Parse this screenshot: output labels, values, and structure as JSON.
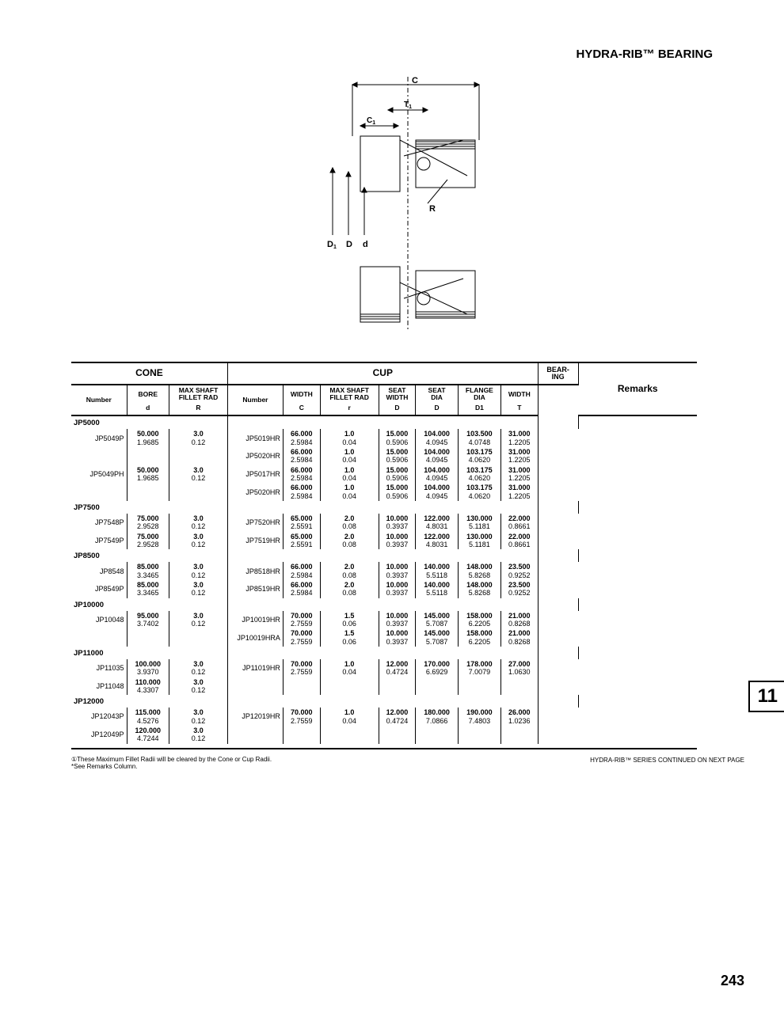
{
  "header": "HYDRA-RIB™ BEARING",
  "diagram_labels": {
    "C": "C",
    "T1": "T1",
    "C1": "C1",
    "R": "R",
    "D1": "D1",
    "D": "D",
    "d": "d"
  },
  "table": {
    "main_headers": {
      "cone": "CONE",
      "cup": "CUP",
      "bearing": "BEAR-\nING",
      "remarks": "Remarks"
    },
    "sub_headers": {
      "cone_number": "Number",
      "bore": "BORE",
      "bore_sym": "d",
      "max_fillet_cone": "MAX SHAFT\nFILLET RAD",
      "max_fillet_cone_sym": "R",
      "cup_number": "Number",
      "width": "WIDTH",
      "width_sym": "C",
      "max_fillet_cup": "MAX SHAFT\nFILLET RAD",
      "max_fillet_cup_sym": "r",
      "seat_width": "SEAT\nWIDTH",
      "seat_width_sym": "D",
      "seat_dia": "SEAT\nDIA",
      "seat_dia_sym": "D",
      "flange_dia": "FLANGE\nDIA",
      "flange_dia_sym": "D1",
      "bwidth": "WIDTH",
      "bwidth_sym": "T"
    },
    "groups": [
      {
        "name": "JP5000",
        "rows": [
          {
            "cone": "JP5049P",
            "bore": [
              "50.000",
              "1.9685"
            ],
            "mfr": [
              "3.0",
              "0.12"
            ],
            "cup": "JP5019HR",
            "w": [
              "66.000",
              "2.5984"
            ],
            "mfr2": [
              "1.0",
              "0.04"
            ],
            "sw": [
              "15.000",
              "0.5906"
            ],
            "sd": [
              "104.000",
              "4.0945"
            ],
            "fd": [
              "103.500",
              "4.0748"
            ],
            "bw": [
              "31.000",
              "1.2205"
            ]
          },
          {
            "cone": "",
            "bore": [
              "",
              ""
            ],
            "mfr": [
              "",
              ""
            ],
            "cup": "JP5020HR",
            "w": [
              "66.000",
              "2.5984"
            ],
            "mfr2": [
              "1.0",
              "0.04"
            ],
            "sw": [
              "15.000",
              "0.5906"
            ],
            "sd": [
              "104.000",
              "4.0945"
            ],
            "fd": [
              "103.175",
              "4.0620"
            ],
            "bw": [
              "31.000",
              "1.2205"
            ]
          },
          {
            "cone": "JP5049PH",
            "bore": [
              "50.000",
              "1.9685"
            ],
            "mfr": [
              "3.0",
              "0.12"
            ],
            "cup": "JP5017HR",
            "w": [
              "66.000",
              "2.5984"
            ],
            "mfr2": [
              "1.0",
              "0.04"
            ],
            "sw": [
              "15.000",
              "0.5906"
            ],
            "sd": [
              "104.000",
              "4.0945"
            ],
            "fd": [
              "103.175",
              "4.0620"
            ],
            "bw": [
              "31.000",
              "1.2205"
            ]
          },
          {
            "cone": "",
            "bore": [
              "",
              ""
            ],
            "mfr": [
              "",
              ""
            ],
            "cup": "JP5020HR",
            "w": [
              "66.000",
              "2.5984"
            ],
            "mfr2": [
              "1.0",
              "0.04"
            ],
            "sw": [
              "15.000",
              "0.5906"
            ],
            "sd": [
              "104.000",
              "4.0945"
            ],
            "fd": [
              "103.175",
              "4.0620"
            ],
            "bw": [
              "31.000",
              "1.2205"
            ]
          }
        ]
      },
      {
        "name": "JP7500",
        "rows": [
          {
            "cone": "JP7548P",
            "bore": [
              "75.000",
              "2.9528"
            ],
            "mfr": [
              "3.0",
              "0.12"
            ],
            "cup": "JP7520HR",
            "w": [
              "65.000",
              "2.5591"
            ],
            "mfr2": [
              "2.0",
              "0.08"
            ],
            "sw": [
              "10.000",
              "0.3937"
            ],
            "sd": [
              "122.000",
              "4.8031"
            ],
            "fd": [
              "130.000",
              "5.1181"
            ],
            "bw": [
              "22.000",
              "0.8661"
            ]
          },
          {
            "cone": "JP7549P",
            "bore": [
              "75.000",
              "2.9528"
            ],
            "mfr": [
              "3.0",
              "0.12"
            ],
            "cup": "JP7519HR",
            "w": [
              "65.000",
              "2.5591"
            ],
            "mfr2": [
              "2.0",
              "0.08"
            ],
            "sw": [
              "10.000",
              "0.3937"
            ],
            "sd": [
              "122.000",
              "4.8031"
            ],
            "fd": [
              "130.000",
              "5.1181"
            ],
            "bw": [
              "22.000",
              "0.8661"
            ]
          }
        ]
      },
      {
        "name": "JP8500",
        "rows": [
          {
            "cone": "JP8548",
            "bore": [
              "85.000",
              "3.3465"
            ],
            "mfr": [
              "3.0",
              "0.12"
            ],
            "cup": "JP8518HR",
            "w": [
              "66.000",
              "2.5984"
            ],
            "mfr2": [
              "2.0",
              "0.08"
            ],
            "sw": [
              "10.000",
              "0.3937"
            ],
            "sd": [
              "140.000",
              "5.5118"
            ],
            "fd": [
              "148.000",
              "5.8268"
            ],
            "bw": [
              "23.500",
              "0.9252"
            ]
          },
          {
            "cone": "JP8549P",
            "bore": [
              "85.000",
              "3.3465"
            ],
            "mfr": [
              "3.0",
              "0.12"
            ],
            "cup": "JP8519HR",
            "w": [
              "66.000",
              "2.5984"
            ],
            "mfr2": [
              "2.0",
              "0.08"
            ],
            "sw": [
              "10.000",
              "0.3937"
            ],
            "sd": [
              "140.000",
              "5.5118"
            ],
            "fd": [
              "148.000",
              "5.8268"
            ],
            "bw": [
              "23.500",
              "0.9252"
            ]
          }
        ]
      },
      {
        "name": "JP10000",
        "rows": [
          {
            "cone": "JP10048",
            "bore": [
              "95.000",
              "3.7402"
            ],
            "mfr": [
              "3.0",
              "0.12"
            ],
            "cup": "JP10019HR",
            "w": [
              "70.000",
              "2.7559"
            ],
            "mfr2": [
              "1.5",
              "0.06"
            ],
            "sw": [
              "10.000",
              "0.3937"
            ],
            "sd": [
              "145.000",
              "5.7087"
            ],
            "fd": [
              "158.000",
              "6.2205"
            ],
            "bw": [
              "21.000",
              "0.8268"
            ]
          },
          {
            "cone": "",
            "bore": [
              "",
              ""
            ],
            "mfr": [
              "",
              ""
            ],
            "cup": "JP10019HRA",
            "w": [
              "70.000",
              "2.7559"
            ],
            "mfr2": [
              "1.5",
              "0.06"
            ],
            "sw": [
              "10.000",
              "0.3937"
            ],
            "sd": [
              "145.000",
              "5.7087"
            ],
            "fd": [
              "158.000",
              "6.2205"
            ],
            "bw": [
              "21.000",
              "0.8268"
            ]
          }
        ]
      },
      {
        "name": "JP11000",
        "rows": [
          {
            "cone": "JP11035",
            "bore": [
              "100.000",
              "3.9370"
            ],
            "mfr": [
              "3.0",
              "0.12"
            ],
            "cup": "JP11019HR",
            "w": [
              "70.000",
              "2.7559"
            ],
            "mfr2": [
              "1.0",
              "0.04"
            ],
            "sw": [
              "12.000",
              "0.4724"
            ],
            "sd": [
              "170.000",
              "6.6929"
            ],
            "fd": [
              "178.000",
              "7.0079"
            ],
            "bw": [
              "27.000",
              "1.0630"
            ]
          },
          {
            "cone": "JP11048",
            "bore": [
              "110.000",
              "4.3307"
            ],
            "mfr": [
              "3.0",
              "0.12"
            ],
            "cup": "",
            "w": [
              "",
              ""
            ],
            "mfr2": [
              "",
              ""
            ],
            "sw": [
              "",
              ""
            ],
            "sd": [
              "",
              ""
            ],
            "fd": [
              "",
              ""
            ],
            "bw": [
              "",
              ""
            ]
          }
        ]
      },
      {
        "name": "JP12000",
        "rows": [
          {
            "cone": "JP12043P",
            "bore": [
              "115.000",
              "4.5276"
            ],
            "mfr": [
              "3.0",
              "0.12"
            ],
            "cup": "JP12019HR",
            "w": [
              "70.000",
              "2.7559"
            ],
            "mfr2": [
              "1.0",
              "0.04"
            ],
            "sw": [
              "12.000",
              "0.4724"
            ],
            "sd": [
              "180.000",
              "7.0866"
            ],
            "fd": [
              "190.000",
              "7.4803"
            ],
            "bw": [
              "26.000",
              "1.0236"
            ]
          },
          {
            "cone": "JP12049P",
            "bore": [
              "120.000",
              "4.7244"
            ],
            "mfr": [
              "3.0",
              "0.12"
            ],
            "cup": "",
            "w": [
              "",
              ""
            ],
            "mfr2": [
              "",
              ""
            ],
            "sw": [
              "",
              ""
            ],
            "sd": [
              "",
              ""
            ],
            "fd": [
              "",
              ""
            ],
            "bw": [
              "",
              ""
            ]
          }
        ]
      }
    ]
  },
  "footnote1": "①These Maximum Fillet Radii will be cleared by the Cone or Cup Radii.",
  "footnote2": "*See Remarks Column.",
  "continued": "HYDRA-RIB™ SERIES CONTINUED ON NEXT PAGE",
  "page_tab": "11",
  "page_num": "243"
}
